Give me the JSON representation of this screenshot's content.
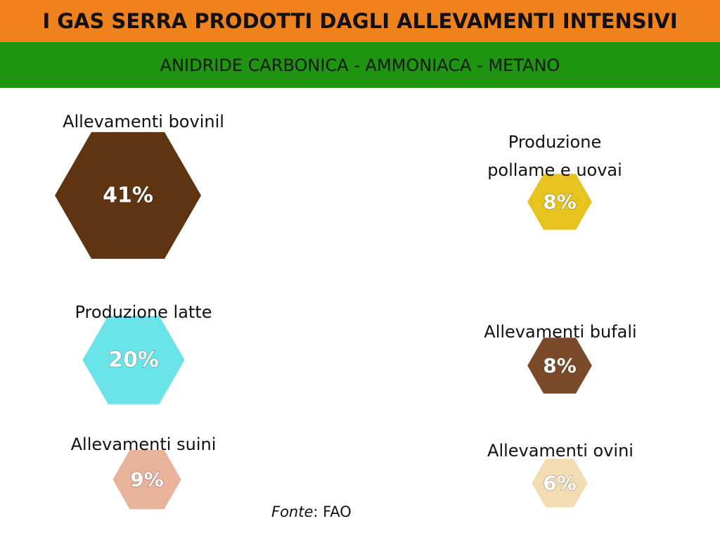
{
  "header": {
    "title": "I GAS  SERRA PRODOTTI DAGLI ALLEVAMENTI INTENSIVI",
    "subtitle": "ANIDRIDE CARBONICA - AMMONIACA - METANO",
    "title_bg": "#f0821e",
    "subtitle_bg": "#1e9410"
  },
  "chart_data": {
    "type": "bubble",
    "title": "I GAS  SERRA PRODOTTI DAGLI ALLEVAMENTI INTENSIVI",
    "subtitle": "ANIDRIDE CARBONICA - AMMONIACA - METANO",
    "unit": "%",
    "categories": [
      "Allevamenti bovinil",
      "Produzione latte",
      "Allevamenti suini",
      "Produzione pollame e uovai",
      "Allevamenti bufali",
      "Allevamenti ovini"
    ],
    "values": [
      41,
      20,
      9,
      8,
      8,
      6
    ],
    "value_labels": [
      "41%",
      "20%",
      "9%",
      "8%",
      "8%",
      "6%"
    ],
    "label_lines": [
      [
        "Allevamenti bovinil"
      ],
      [
        "Produzione latte"
      ],
      [
        "Allevamenti suini"
      ],
      [
        "Produzione",
        "pollame e uovai"
      ],
      [
        "Allevamenti bufali"
      ],
      [
        "Allevamenti ovini"
      ]
    ],
    "colors": [
      "#5e3510",
      "#6ae4e8",
      "#e9b29b",
      "#e6c31e",
      "#7a4a2a",
      "#f4dcb2"
    ],
    "shape": "hexagon"
  },
  "source": {
    "prefix": "Fonte",
    "text": ": FAO"
  }
}
